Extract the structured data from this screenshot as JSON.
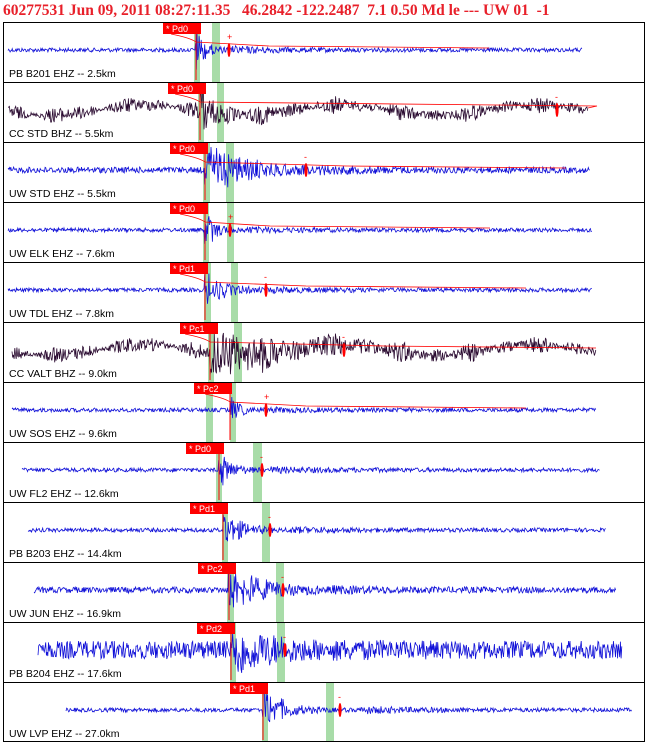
{
  "header": {
    "text": "60277531 Jun 09, 2011 08:27:11.35   46.2842 -122.2487  7.1 0.50 Md le --- UW 01  -1"
  },
  "chart_data": {
    "type": "line",
    "title": "60277531 Jun 09, 2011 08:27:11.35   46.2842 -122.2487  7.1 0.50 Md le --- UW 01  -1",
    "xlabel": "",
    "ylabel": "",
    "grid": false,
    "legend": "none",
    "colors": {
      "trace_short": "#1010d8",
      "trace_broadband": "#2a0a30",
      "pick": "#ff0000",
      "window": "#a8dca8",
      "frame": "#000000"
    },
    "series": [
      {
        "name": "PB B201 EHZ -- 2.5km",
        "distance_km": 2.5,
        "pick_label": "* Pd0",
        "pick_text_x": 167
      },
      {
        "name": "CC STD BHZ -- 5.5km",
        "distance_km": 5.5,
        "pick_label": "* Pd0",
        "pick_text_x": 172
      },
      {
        "name": "UW STD EHZ -- 5.5km",
        "distance_km": 5.5,
        "pick_label": "* Pd0",
        "pick_text_x": 174
      },
      {
        "name": "UW ELK EHZ -- 7.6km",
        "distance_km": 7.6,
        "pick_label": "* Pd0",
        "pick_text_x": 174
      },
      {
        "name": "UW TDL EHZ -- 7.8km",
        "distance_km": 7.8,
        "pick_label": "* Pd1",
        "pick_text_x": 174
      },
      {
        "name": "CC VALT BHZ -- 9.0km",
        "distance_km": 9.0,
        "pick_label": "* Pc1",
        "pick_text_x": 184
      },
      {
        "name": "UW SOS EHZ -- 9.6km",
        "distance_km": 9.6,
        "pick_label": "* Pc2",
        "pick_text_x": 198
      },
      {
        "name": "UW FL2 EHZ -- 12.6km",
        "distance_km": 12.6,
        "pick_label": "* Pd0",
        "pick_text_x": 190
      },
      {
        "name": "PB B203 EHZ -- 14.4km",
        "distance_km": 14.4,
        "pick_label": "* Pd1",
        "pick_text_x": 194
      },
      {
        "name": "UW JUN EHZ -- 16.9km",
        "distance_km": 16.9,
        "pick_label": "* Pc2",
        "pick_text_x": 202
      },
      {
        "name": "PB B204 EHZ -- 17.6km",
        "distance_km": 17.6,
        "pick_label": "* Pd2",
        "pick_text_x": 201
      },
      {
        "name": "UW LVP EHZ -- 27.0km",
        "distance_km": 27.0,
        "pick_label": "* Pd1",
        "pick_text_x": 234
      }
    ]
  }
}
